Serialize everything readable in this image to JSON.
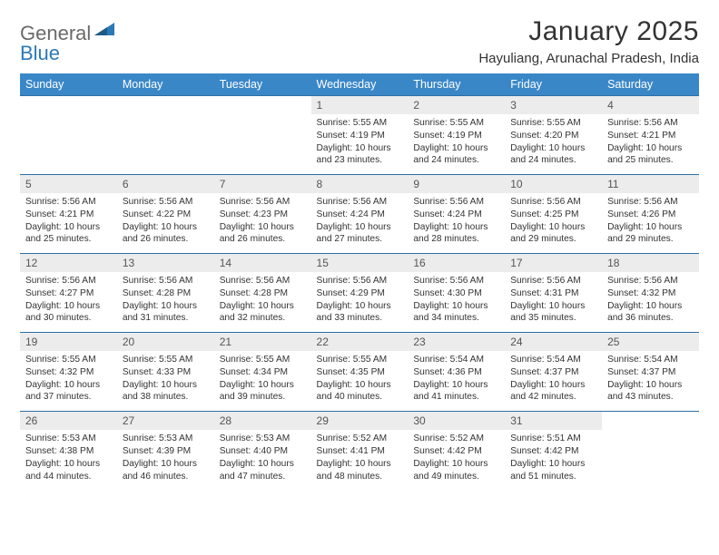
{
  "colors": {
    "header_bg": "#3a87c8",
    "row_border": "#2f6fa3",
    "daynum_bg": "#ececec",
    "logo_gray": "#6a6a6a",
    "logo_blue": "#2a7ab8",
    "text": "#333333",
    "bg": "#ffffff"
  },
  "typography": {
    "title_fontsize_pt": 22,
    "location_fontsize_pt": 11,
    "header_fontsize_pt": 9,
    "daynum_fontsize_pt": 9,
    "body_fontsize_pt": 7.5
  },
  "logo": {
    "part1": "General",
    "part2": "Blue"
  },
  "title": "January 2025",
  "location": "Hayuliang, Arunachal Pradesh, India",
  "weekdays": [
    "Sunday",
    "Monday",
    "Tuesday",
    "Wednesday",
    "Thursday",
    "Friday",
    "Saturday"
  ],
  "first_weekday_index": 3,
  "days": [
    {
      "n": "1",
      "sunrise": "5:55 AM",
      "sunset": "4:19 PM",
      "daylight": "10 hours and 23 minutes."
    },
    {
      "n": "2",
      "sunrise": "5:55 AM",
      "sunset": "4:19 PM",
      "daylight": "10 hours and 24 minutes."
    },
    {
      "n": "3",
      "sunrise": "5:55 AM",
      "sunset": "4:20 PM",
      "daylight": "10 hours and 24 minutes."
    },
    {
      "n": "4",
      "sunrise": "5:56 AM",
      "sunset": "4:21 PM",
      "daylight": "10 hours and 25 minutes."
    },
    {
      "n": "5",
      "sunrise": "5:56 AM",
      "sunset": "4:21 PM",
      "daylight": "10 hours and 25 minutes."
    },
    {
      "n": "6",
      "sunrise": "5:56 AM",
      "sunset": "4:22 PM",
      "daylight": "10 hours and 26 minutes."
    },
    {
      "n": "7",
      "sunrise": "5:56 AM",
      "sunset": "4:23 PM",
      "daylight": "10 hours and 26 minutes."
    },
    {
      "n": "8",
      "sunrise": "5:56 AM",
      "sunset": "4:24 PM",
      "daylight": "10 hours and 27 minutes."
    },
    {
      "n": "9",
      "sunrise": "5:56 AM",
      "sunset": "4:24 PM",
      "daylight": "10 hours and 28 minutes."
    },
    {
      "n": "10",
      "sunrise": "5:56 AM",
      "sunset": "4:25 PM",
      "daylight": "10 hours and 29 minutes."
    },
    {
      "n": "11",
      "sunrise": "5:56 AM",
      "sunset": "4:26 PM",
      "daylight": "10 hours and 29 minutes."
    },
    {
      "n": "12",
      "sunrise": "5:56 AM",
      "sunset": "4:27 PM",
      "daylight": "10 hours and 30 minutes."
    },
    {
      "n": "13",
      "sunrise": "5:56 AM",
      "sunset": "4:28 PM",
      "daylight": "10 hours and 31 minutes."
    },
    {
      "n": "14",
      "sunrise": "5:56 AM",
      "sunset": "4:28 PM",
      "daylight": "10 hours and 32 minutes."
    },
    {
      "n": "15",
      "sunrise": "5:56 AM",
      "sunset": "4:29 PM",
      "daylight": "10 hours and 33 minutes."
    },
    {
      "n": "16",
      "sunrise": "5:56 AM",
      "sunset": "4:30 PM",
      "daylight": "10 hours and 34 minutes."
    },
    {
      "n": "17",
      "sunrise": "5:56 AM",
      "sunset": "4:31 PM",
      "daylight": "10 hours and 35 minutes."
    },
    {
      "n": "18",
      "sunrise": "5:56 AM",
      "sunset": "4:32 PM",
      "daylight": "10 hours and 36 minutes."
    },
    {
      "n": "19",
      "sunrise": "5:55 AM",
      "sunset": "4:32 PM",
      "daylight": "10 hours and 37 minutes."
    },
    {
      "n": "20",
      "sunrise": "5:55 AM",
      "sunset": "4:33 PM",
      "daylight": "10 hours and 38 minutes."
    },
    {
      "n": "21",
      "sunrise": "5:55 AM",
      "sunset": "4:34 PM",
      "daylight": "10 hours and 39 minutes."
    },
    {
      "n": "22",
      "sunrise": "5:55 AM",
      "sunset": "4:35 PM",
      "daylight": "10 hours and 40 minutes."
    },
    {
      "n": "23",
      "sunrise": "5:54 AM",
      "sunset": "4:36 PM",
      "daylight": "10 hours and 41 minutes."
    },
    {
      "n": "24",
      "sunrise": "5:54 AM",
      "sunset": "4:37 PM",
      "daylight": "10 hours and 42 minutes."
    },
    {
      "n": "25",
      "sunrise": "5:54 AM",
      "sunset": "4:37 PM",
      "daylight": "10 hours and 43 minutes."
    },
    {
      "n": "26",
      "sunrise": "5:53 AM",
      "sunset": "4:38 PM",
      "daylight": "10 hours and 44 minutes."
    },
    {
      "n": "27",
      "sunrise": "5:53 AM",
      "sunset": "4:39 PM",
      "daylight": "10 hours and 46 minutes."
    },
    {
      "n": "28",
      "sunrise": "5:53 AM",
      "sunset": "4:40 PM",
      "daylight": "10 hours and 47 minutes."
    },
    {
      "n": "29",
      "sunrise": "5:52 AM",
      "sunset": "4:41 PM",
      "daylight": "10 hours and 48 minutes."
    },
    {
      "n": "30",
      "sunrise": "5:52 AM",
      "sunset": "4:42 PM",
      "daylight": "10 hours and 49 minutes."
    },
    {
      "n": "31",
      "sunrise": "5:51 AM",
      "sunset": "4:42 PM",
      "daylight": "10 hours and 51 minutes."
    }
  ],
  "labels": {
    "sunrise": "Sunrise:",
    "sunset": "Sunset:",
    "daylight": "Daylight:"
  }
}
